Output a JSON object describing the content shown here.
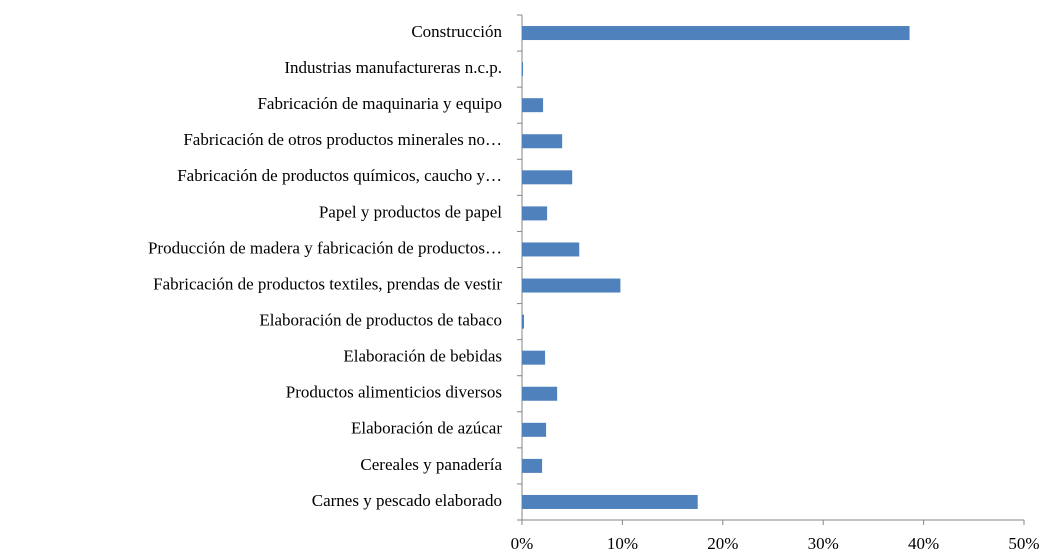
{
  "chart_data": {
    "type": "barh",
    "categories": [
      "Construcción",
      "Industrias manufactureras n.c.p.",
      "Fabricación de maquinaria y equipo",
      "Fabricación de otros productos minerales no…",
      "Fabricación de productos químicos, caucho y…",
      "Papel y productos de papel",
      "Producción de madera y fabricación de productos…",
      "Fabricación de productos textiles, prendas de vestir",
      "Elaboración de productos de tabaco",
      "Elaboración de bebidas",
      "Productos alimenticios diversos",
      "Elaboración de azúcar",
      "Cereales y panadería",
      "Carnes y pescado elaborado"
    ],
    "values": [
      38.6,
      0.1,
      2.1,
      4.0,
      5.0,
      2.5,
      5.7,
      9.8,
      0.2,
      2.3,
      3.5,
      2.4,
      2.0,
      17.5
    ],
    "color": "#4f81bd",
    "xlim": [
      0,
      50
    ],
    "xticks": [
      {
        "value": 0,
        "label": "0%"
      },
      {
        "value": 10,
        "label": "10%"
      },
      {
        "value": 20,
        "label": "20%"
      },
      {
        "value": 30,
        "label": "30%"
      },
      {
        "value": 40,
        "label": "40%"
      },
      {
        "value": 50,
        "label": "50%"
      }
    ]
  }
}
